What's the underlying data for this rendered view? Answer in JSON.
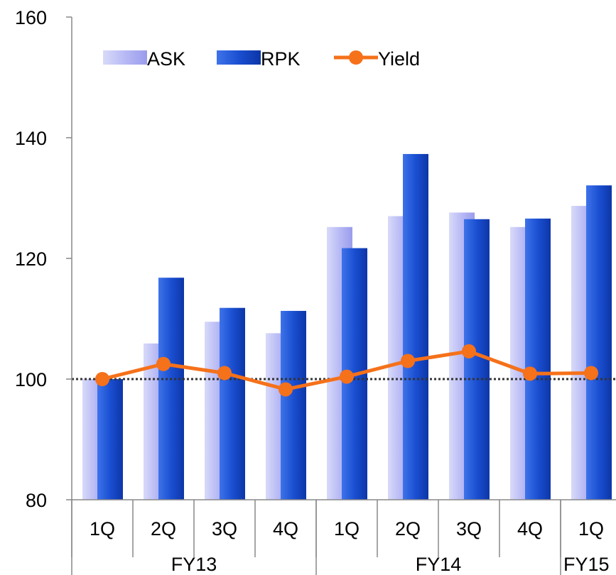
{
  "chart_data": {
    "type": "bar",
    "categories": [
      "1Q",
      "2Q",
      "3Q",
      "4Q",
      "1Q",
      "2Q",
      "3Q",
      "4Q",
      "1Q"
    ],
    "groups": [
      {
        "label": "FY13",
        "count": 4
      },
      {
        "label": "FY14",
        "count": 4
      },
      {
        "label": "FY15",
        "count": 1
      }
    ],
    "series": [
      {
        "name": "ASK",
        "type": "bar",
        "color": "#b7b9f5",
        "values": [
          100,
          105.9,
          109.5,
          107.6,
          125.2,
          127,
          127.6,
          125.2,
          128.7
        ]
      },
      {
        "name": "RPK",
        "type": "bar",
        "color": "#1a4fd1",
        "values": [
          100,
          116.8,
          111.8,
          111.3,
          121.7,
          137.3,
          126.5,
          126.6,
          132.1
        ]
      },
      {
        "name": "Yield",
        "type": "line",
        "color": "#f5711a",
        "values": [
          100,
          102.5,
          101,
          98.3,
          100.4,
          103,
          104.6,
          100.9,
          101
        ]
      }
    ],
    "ylim": [
      80,
      160
    ],
    "yticks": [
      80,
      100,
      120,
      140,
      160
    ],
    "reference_line": 100,
    "legend_position": "top-left",
    "grid": false,
    "title": "",
    "xlabel": "",
    "ylabel": ""
  }
}
